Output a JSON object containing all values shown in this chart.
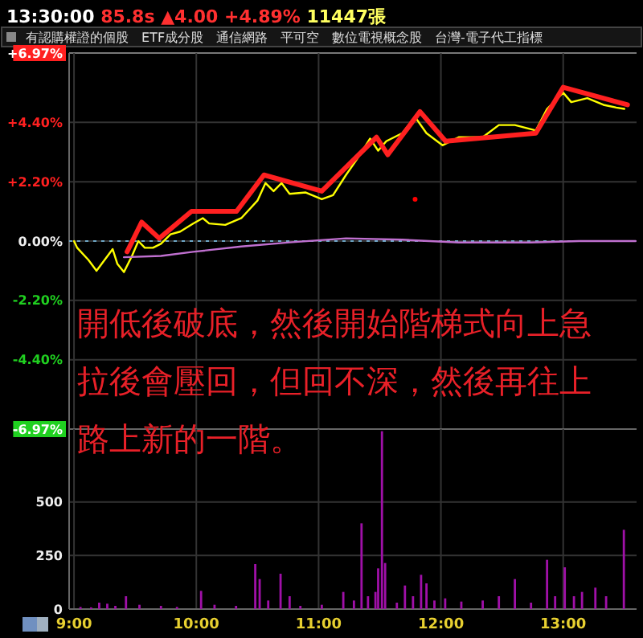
{
  "chart_data": [
    {
      "type": "line",
      "subtitle": "13:30:00 85.8s ▲4.00 +4.89% 11447張",
      "annotations": [
        "有認購權證的個股",
        "ETF成分股",
        "通信網路",
        "平可空",
        "數位電視概念股",
        "台灣-電子代工指標",
        "開低後破底，然後開始階梯式向上急拉後會壓回，但回不深，然後再往上路上新的一階。"
      ],
      "xlim": [
        8.96,
        13.6
      ],
      "xticks": [
        {
          "value": 9,
          "label": null
        },
        {
          "value": 10,
          "label": null
        },
        {
          "value": 11,
          "label": null
        },
        {
          "value": 12,
          "label": null
        },
        {
          "value": 13,
          "label": null
        }
      ],
      "ylim": [
        -6.97,
        6.97
      ],
      "yticks": [
        {
          "value": -6.97,
          "label": "-6.97%"
        },
        {
          "value": -4.4,
          "label": "-4.40%"
        },
        {
          "value": -2.2,
          "label": "-2.20%"
        },
        {
          "value": 0,
          "label": "0.00%"
        },
        {
          "value": 2.2,
          "label": "+2.20%"
        },
        {
          "value": 4.4,
          "label": "+4.40%"
        },
        {
          "value": 6.97,
          "label": "+6.97%"
        }
      ],
      "tick_labels": "y",
      "grid": true,
      "ref_lines": [
        {
          "axis": "y",
          "value": 0,
          "color": "#6fa8c8",
          "line_style": "dotted"
        }
      ],
      "series": [
        {
          "color": "#ffff00",
          "x": [
            9,
            9.026,
            9.118,
            9.184,
            9.25,
            9.316,
            9.355,
            9.408,
            9.474,
            9.526,
            9.579,
            9.645,
            9.711,
            9.789,
            9.868,
            9.974,
            10.053,
            10.105,
            10.237,
            10.368,
            10.5,
            10.566,
            10.632,
            10.697,
            10.763,
            10.895,
            11.026,
            11.118,
            11.224,
            11.316,
            11.421,
            11.487,
            11.553,
            11.684,
            11.789,
            11.882,
            12.013,
            12.145,
            12.342,
            12.474,
            12.605,
            12.776,
            12.868,
            13,
            13.066,
            13.197,
            13.329,
            13.434,
            13.5
          ],
          "values": [
            0,
            -0.25,
            -0.7,
            -1.1,
            -0.7,
            -0.3,
            -0.85,
            -1.15,
            -0.55,
            0,
            -0.25,
            -0.25,
            -0.1,
            0.25,
            0.35,
            0.65,
            0.85,
            0.65,
            0.6,
            0.85,
            1.5,
            2.15,
            1.85,
            2.15,
            1.75,
            1.8,
            1.55,
            1.7,
            2.45,
            3.05,
            3.8,
            3.35,
            3.7,
            4,
            4.6,
            4,
            3.55,
            3.85,
            3.85,
            4.3,
            4.3,
            4.1,
            4.9,
            5.5,
            5.15,
            5.3,
            5.05,
            4.95,
            4.9
          ]
        },
        {
          "type": "line",
          "color": "#ff2020",
          "x": [
            9.434,
            9.553,
            9.697,
            9.961,
            10.329,
            10.553,
            11.026,
            11.474,
            11.566,
            11.829,
            12.039,
            12.776,
            13,
            13.526
          ],
          "values": [
            -0.4,
            0.7,
            0.1,
            1.1,
            1.1,
            2.45,
            1.85,
            3.85,
            3.2,
            4.8,
            3.7,
            4,
            5.7,
            5.05
          ]
        },
        {
          "type": "line",
          "color": "#c070d0",
          "x": [
            9.408,
            9.711,
            9.974,
            10.368,
            10.763,
            11.224,
            11.684,
            12.145,
            12.737,
            13.132,
            13.592
          ],
          "values": [
            -0.6,
            -0.55,
            -0.4,
            -0.2,
            -0.05,
            0.1,
            0.05,
            -0.05,
            -0.05,
            0,
            0
          ]
        },
        {
          "type": "scatter",
          "color": "#ff0000",
          "x": [
            11.789
          ],
          "values": [
            1.55
          ]
        }
      ]
    },
    {
      "type": "bar",
      "xlim": [
        8.96,
        13.6
      ],
      "xticks": [
        {
          "value": 9,
          "label": "9:00"
        },
        {
          "value": 10,
          "label": "10:00"
        },
        {
          "value": 11,
          "label": "11:00"
        },
        {
          "value": 12,
          "label": "12:00"
        },
        {
          "value": 13,
          "label": "13:00"
        }
      ],
      "ylim": [
        0,
        840
      ],
      "yticks": [
        0,
        250,
        500
      ],
      "grid": true,
      "series": [
        {
          "color": "#a010a8",
          "x": [
            9.053,
            9.14,
            9.206,
            9.272,
            9.338,
            9.425,
            9.535,
            9.711,
            9.842,
            10.039,
            10.149,
            10.325,
            10.482,
            10.518,
            10.588,
            10.689,
            10.763,
            10.851,
            11.026,
            11.202,
            11.289,
            11.351,
            11.404,
            11.465,
            11.487,
            11.518,
            11.544,
            11.64,
            11.706,
            11.772,
            11.838,
            11.882,
            11.947,
            12.035,
            12.167,
            12.342,
            12.474,
            12.605,
            12.737,
            12.868,
            12.934,
            13.013,
            13.088,
            13.154,
            13.263,
            13.351,
            13.496
          ],
          "values": [
            10,
            8,
            30,
            25,
            15,
            60,
            20,
            15,
            10,
            85,
            20,
            15,
            210,
            140,
            40,
            165,
            60,
            15,
            20,
            80,
            40,
            400,
            60,
            80,
            190,
            830,
            215,
            30,
            110,
            60,
            160,
            120,
            40,
            50,
            35,
            40,
            60,
            140,
            30,
            230,
            60,
            195,
            60,
            80,
            100,
            60,
            370
          ]
        }
      ]
    }
  ]
}
